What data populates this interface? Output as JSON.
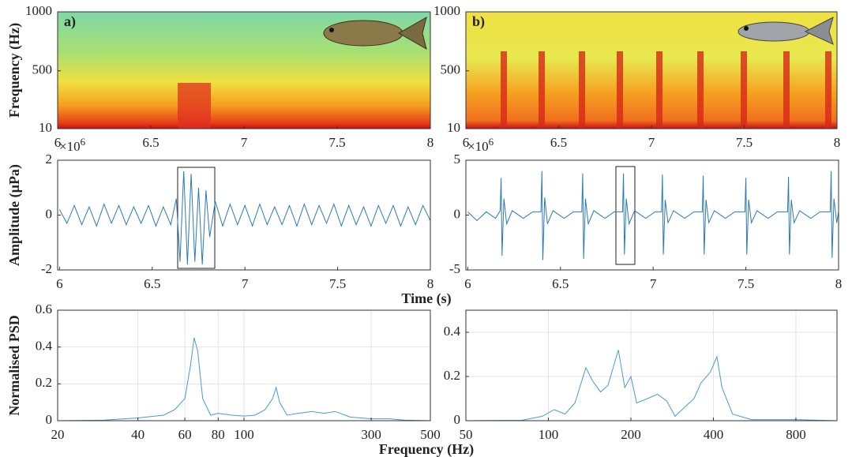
{
  "chart_data": [
    {
      "type": "spectrogram",
      "panel_label": "a)",
      "ylabel": "Frequency (Hz)",
      "xlim": [
        6,
        8
      ],
      "xticks": [
        6,
        6.5,
        7,
        7.5,
        8
      ],
      "ylim": [
        10,
        1000
      ],
      "yticks": [
        10,
        500,
        1000
      ]
    },
    {
      "type": "spectrogram",
      "panel_label": "b)",
      "xlim": [
        6,
        8
      ],
      "xticks": [
        6,
        6.5,
        7,
        7.5,
        8
      ],
      "ylim": [
        10,
        1000
      ],
      "yticks": [
        10,
        500,
        1000
      ]
    },
    {
      "type": "line",
      "ylabel": "Amplitude (µPa)",
      "scale_base": "×10",
      "scale_power": "6",
      "color": "#2a7ab9",
      "xlim": [
        5.99,
        8
      ],
      "xticks": [
        6,
        6.5,
        7,
        7.5,
        8
      ],
      "ylim": [
        -2,
        2
      ],
      "yticks": [
        -2,
        0,
        2
      ],
      "x": [
        6.0,
        6.04,
        6.08,
        6.12,
        6.16,
        6.2,
        6.24,
        6.28,
        6.32,
        6.36,
        6.4,
        6.44,
        6.48,
        6.52,
        6.56,
        6.6,
        6.63,
        6.65,
        6.67,
        6.69,
        6.71,
        6.73,
        6.75,
        6.77,
        6.79,
        6.81,
        6.84,
        6.88,
        6.92,
        6.96,
        7.0,
        7.04,
        7.08,
        7.12,
        7.16,
        7.2,
        7.24,
        7.28,
        7.32,
        7.36,
        7.4,
        7.44,
        7.48,
        7.52,
        7.56,
        7.6,
        7.64,
        7.68,
        7.72,
        7.76,
        7.8,
        7.84,
        7.88,
        7.92,
        7.96,
        8.0
      ],
      "values": [
        0.2,
        -0.3,
        0.35,
        -0.35,
        0.3,
        -0.4,
        0.4,
        -0.3,
        0.35,
        -0.35,
        0.3,
        -0.3,
        0.35,
        -0.4,
        0.3,
        -0.35,
        0.6,
        -1.7,
        1.6,
        -1.8,
        1.5,
        -1.7,
        1.0,
        -1.8,
        0.9,
        -0.8,
        0.5,
        -0.4,
        0.4,
        -0.35,
        0.35,
        -0.4,
        0.4,
        -0.35,
        0.3,
        -0.35,
        0.35,
        -0.4,
        0.4,
        -0.35,
        0.35,
        -0.3,
        0.4,
        -0.4,
        0.35,
        -0.35,
        0.3,
        -0.4,
        0.35,
        -0.3,
        0.35,
        -0.4,
        0.3,
        -0.35,
        0.35,
        -0.2
      ]
    },
    {
      "type": "line",
      "xlabel": "Time (s)",
      "scale_base": "×10",
      "scale_power": "6",
      "color": "#2a7ab9",
      "xlim": [
        5.99,
        8
      ],
      "xticks": [
        6,
        6.5,
        7,
        7.5,
        8
      ],
      "ylim": [
        -5,
        5
      ],
      "yticks": [
        -5,
        0,
        5
      ],
      "x": [
        6.0,
        6.05,
        6.1,
        6.15,
        6.175,
        6.18,
        6.185,
        6.195,
        6.21,
        6.24,
        6.3,
        6.35,
        6.395,
        6.4,
        6.405,
        6.415,
        6.43,
        6.46,
        6.52,
        6.57,
        6.615,
        6.62,
        6.625,
        6.635,
        6.65,
        6.68,
        6.74,
        6.79,
        6.835,
        6.84,
        6.845,
        6.855,
        6.87,
        6.9,
        6.96,
        7.01,
        7.045,
        7.05,
        7.055,
        7.065,
        7.08,
        7.11,
        7.17,
        7.22,
        7.265,
        7.27,
        7.275,
        7.285,
        7.3,
        7.33,
        7.39,
        7.44,
        7.495,
        7.5,
        7.505,
        7.515,
        7.53,
        7.56,
        7.62,
        7.67,
        7.725,
        7.73,
        7.735,
        7.745,
        7.76,
        7.79,
        7.85,
        7.9,
        7.955,
        7.96,
        7.965,
        7.975,
        7.99,
        8.0
      ],
      "values": [
        0.3,
        -0.5,
        0.3,
        -0.3,
        0.4,
        3.4,
        -3.7,
        1.5,
        -0.8,
        0.4,
        -0.3,
        0.3,
        0.3,
        4.0,
        -4.1,
        1.6,
        -0.8,
        0.4,
        -0.3,
        0.3,
        0.3,
        3.8,
        -4.0,
        1.5,
        -0.8,
        0.4,
        -0.3,
        0.3,
        0.3,
        3.8,
        -3.6,
        1.5,
        -0.8,
        0.4,
        -0.3,
        0.3,
        0.3,
        3.7,
        -3.6,
        1.4,
        -0.7,
        0.4,
        -0.3,
        0.3,
        0.3,
        3.6,
        -3.6,
        1.4,
        -0.7,
        0.4,
        -0.3,
        0.3,
        0.3,
        3.4,
        -3.6,
        1.4,
        -0.7,
        0.4,
        -0.3,
        0.3,
        0.3,
        3.5,
        -3.6,
        1.4,
        -0.7,
        0.4,
        -0.3,
        0.3,
        0.3,
        4.0,
        -3.9,
        1.5,
        -0.7,
        0.3
      ]
    },
    {
      "type": "line",
      "ylabel": "Normalised PSD",
      "xscale": "log",
      "grid": true,
      "color": "#4a9ad4",
      "xlim": [
        20,
        500
      ],
      "xticks": [
        20,
        40,
        60,
        80,
        100,
        300,
        500
      ],
      "ylim": [
        0,
        0.6
      ],
      "yticks": [
        0,
        0.2,
        0.4,
        0.6
      ],
      "x": [
        20,
        30,
        40,
        50,
        55,
        60,
        63,
        65,
        67,
        70,
        75,
        80,
        90,
        100,
        110,
        120,
        128,
        132,
        136,
        145,
        160,
        180,
        200,
        220,
        250,
        300,
        350,
        400,
        500
      ],
      "values": [
        0,
        0.003,
        0.015,
        0.03,
        0.06,
        0.12,
        0.3,
        0.45,
        0.38,
        0.12,
        0.03,
        0.04,
        0.03,
        0.025,
        0.03,
        0.06,
        0.12,
        0.18,
        0.1,
        0.03,
        0.04,
        0.05,
        0.04,
        0.05,
        0.02,
        0.01,
        0.01,
        0.003,
        0
      ]
    },
    {
      "type": "line",
      "xlabel": "Frequency (Hz)",
      "xscale": "log",
      "grid": true,
      "color": "#4a9ad4",
      "xlim": [
        50,
        1130
      ],
      "xticks": [
        50,
        100,
        200,
        400,
        800
      ],
      "ylim": [
        0,
        0.5
      ],
      "yticks": [
        0,
        0.2,
        0.4
      ],
      "x": [
        50,
        80,
        95,
        105,
        115,
        125,
        137,
        145,
        155,
        165,
        180,
        190,
        200,
        210,
        230,
        250,
        270,
        290,
        320,
        340,
        360,
        390,
        412,
        430,
        470,
        550,
        800,
        1130
      ],
      "values": [
        0,
        0.002,
        0.02,
        0.05,
        0.03,
        0.08,
        0.24,
        0.18,
        0.13,
        0.16,
        0.32,
        0.15,
        0.2,
        0.08,
        0.1,
        0.12,
        0.09,
        0.02,
        0.07,
        0.1,
        0.17,
        0.22,
        0.29,
        0.15,
        0.03,
        0.005,
        0.005,
        0
      ]
    }
  ]
}
